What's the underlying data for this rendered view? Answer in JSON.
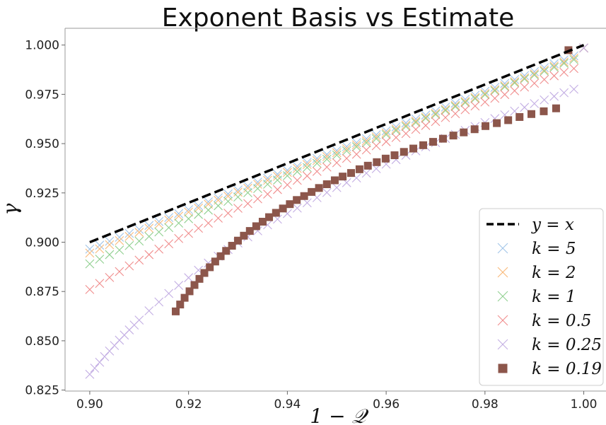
{
  "chart_data": {
    "type": "scatter",
    "title": "Exponent Basis vs Estimate",
    "xlabel": "1 − 𝒬",
    "ylabel": "γ",
    "xlim": [
      0.895,
      1.0045
    ],
    "ylim": [
      0.8245,
      1.0085
    ],
    "x_ticks": [
      0.9,
      0.92,
      0.94,
      0.96,
      0.98,
      1.0
    ],
    "x_tick_labels": [
      "0.90",
      "0.92",
      "0.94",
      "0.96",
      "0.98",
      "1.00"
    ],
    "y_ticks": [
      0.825,
      0.85,
      0.875,
      0.9,
      0.925,
      0.95,
      0.975,
      1.0
    ],
    "y_tick_labels": [
      "0.825",
      "0.850",
      "0.875",
      "0.900",
      "0.925",
      "0.950",
      "0.975",
      "1.000"
    ],
    "grid": false,
    "legend_position": "lower-right",
    "series": [
      {
        "name": "y = x",
        "marker": "dashed-line",
        "color": "#000000",
        "x": [
          0.9,
          1.0
        ],
        "y": [
          0.9,
          1.0
        ]
      },
      {
        "name": "k = 5",
        "marker": "x",
        "color": "#a1c4e8",
        "x": [
          0.9,
          0.902,
          0.904,
          0.906,
          0.908,
          0.91,
          0.912,
          0.914,
          0.916,
          0.918,
          0.92,
          0.922,
          0.924,
          0.926,
          0.928,
          0.93,
          0.932,
          0.934,
          0.936,
          0.938,
          0.94,
          0.942,
          0.944,
          0.946,
          0.948,
          0.95,
          0.952,
          0.954,
          0.956,
          0.958,
          0.96,
          0.962,
          0.964,
          0.966,
          0.968,
          0.97,
          0.972,
          0.974,
          0.976,
          0.978,
          0.98,
          0.982,
          0.984,
          0.986,
          0.988,
          0.99,
          0.992,
          0.994,
          0.996,
          0.998,
          1.0
        ],
        "y": [
          0.8965,
          0.8985,
          0.9005,
          0.9025,
          0.9045,
          0.9065,
          0.9085,
          0.9105,
          0.9125,
          0.9145,
          0.9165,
          0.9185,
          0.9205,
          0.9225,
          0.9245,
          0.9265,
          0.9285,
          0.9305,
          0.9325,
          0.9345,
          0.9365,
          0.9385,
          0.9405,
          0.9425,
          0.9445,
          0.9465,
          0.9485,
          0.9505,
          0.9525,
          0.9545,
          0.9565,
          0.9585,
          0.9605,
          0.9625,
          0.9645,
          0.9665,
          0.9685,
          0.9705,
          0.9725,
          0.9745,
          0.9765,
          0.9785,
          0.9805,
          0.9825,
          0.9845,
          0.9865,
          0.9885,
          0.9905,
          0.9925,
          0.9945,
          0.9985
        ]
      },
      {
        "name": "k = 2",
        "marker": "x",
        "color": "#f9b97a",
        "x": [
          0.9,
          0.902,
          0.904,
          0.906,
          0.908,
          0.91,
          0.912,
          0.914,
          0.916,
          0.918,
          0.92,
          0.922,
          0.924,
          0.926,
          0.928,
          0.93,
          0.932,
          0.934,
          0.936,
          0.938,
          0.94,
          0.942,
          0.944,
          0.946,
          0.948,
          0.95,
          0.952,
          0.954,
          0.956,
          0.958,
          0.96,
          0.962,
          0.964,
          0.966,
          0.968,
          0.97,
          0.972,
          0.974,
          0.976,
          0.978,
          0.98,
          0.982,
          0.984,
          0.986,
          0.988,
          0.99,
          0.992,
          0.994,
          0.996,
          0.998,
          1.0
        ],
        "y": [
          0.8945,
          0.8966,
          0.8987,
          0.9008,
          0.9029,
          0.905,
          0.9071,
          0.9091,
          0.9112,
          0.9132,
          0.9153,
          0.9173,
          0.9193,
          0.9213,
          0.9233,
          0.9254,
          0.9274,
          0.9294,
          0.9314,
          0.9334,
          0.9354,
          0.9374,
          0.9394,
          0.9414,
          0.9434,
          0.9454,
          0.9474,
          0.9494,
          0.9514,
          0.9534,
          0.9554,
          0.9574,
          0.9594,
          0.9614,
          0.9634,
          0.9654,
          0.9674,
          0.9694,
          0.9714,
          0.9734,
          0.9754,
          0.9774,
          0.9794,
          0.9814,
          0.9834,
          0.9854,
          0.9874,
          0.9894,
          0.9914,
          0.9934,
          0.9985
        ]
      },
      {
        "name": "k = 1",
        "marker": "x",
        "color": "#8fcf8f",
        "x": [
          0.9,
          0.902,
          0.904,
          0.906,
          0.908,
          0.91,
          0.912,
          0.914,
          0.916,
          0.918,
          0.92,
          0.922,
          0.924,
          0.926,
          0.928,
          0.93,
          0.932,
          0.934,
          0.936,
          0.938,
          0.94,
          0.942,
          0.944,
          0.946,
          0.948,
          0.95,
          0.952,
          0.954,
          0.956,
          0.958,
          0.96,
          0.962,
          0.964,
          0.966,
          0.968,
          0.97,
          0.972,
          0.974,
          0.976,
          0.978,
          0.98,
          0.982,
          0.984,
          0.986,
          0.988,
          0.99,
          0.992,
          0.994,
          0.996,
          0.998,
          1.0
        ],
        "y": [
          0.889,
          0.8914,
          0.8937,
          0.896,
          0.8983,
          0.9006,
          0.9029,
          0.9052,
          0.9074,
          0.9097,
          0.9119,
          0.9141,
          0.9163,
          0.9185,
          0.9207,
          0.9229,
          0.9251,
          0.9272,
          0.9294,
          0.9315,
          0.9337,
          0.9358,
          0.9379,
          0.94,
          0.9421,
          0.9442,
          0.9463,
          0.9484,
          0.9504,
          0.9525,
          0.9546,
          0.9566,
          0.9587,
          0.9607,
          0.9628,
          0.9648,
          0.9668,
          0.9688,
          0.9708,
          0.9728,
          0.9748,
          0.9768,
          0.9788,
          0.9808,
          0.9828,
          0.9848,
          0.9867,
          0.9887,
          0.9907,
          0.9926,
          0.9985
        ]
      },
      {
        "name": "k = 0.5",
        "marker": "x",
        "color": "#f08c8c",
        "x": [
          0.9,
          0.902,
          0.904,
          0.906,
          0.908,
          0.91,
          0.912,
          0.914,
          0.916,
          0.918,
          0.92,
          0.922,
          0.924,
          0.926,
          0.928,
          0.93,
          0.932,
          0.934,
          0.936,
          0.938,
          0.94,
          0.942,
          0.944,
          0.946,
          0.948,
          0.95,
          0.952,
          0.954,
          0.956,
          0.958,
          0.96,
          0.962,
          0.964,
          0.966,
          0.968,
          0.97,
          0.972,
          0.974,
          0.976,
          0.978,
          0.98,
          0.982,
          0.984,
          0.986,
          0.988,
          0.99,
          0.992,
          0.994,
          0.996,
          0.998,
          1.0
        ],
        "y": [
          0.876,
          0.8791,
          0.8821,
          0.8851,
          0.888,
          0.8909,
          0.8937,
          0.8965,
          0.8992,
          0.9019,
          0.9045,
          0.9071,
          0.9097,
          0.9122,
          0.9147,
          0.9172,
          0.9196,
          0.922,
          0.9244,
          0.9267,
          0.9291,
          0.9314,
          0.9336,
          0.9359,
          0.9381,
          0.9403,
          0.9425,
          0.9446,
          0.9468,
          0.9489,
          0.951,
          0.9531,
          0.9551,
          0.9572,
          0.9592,
          0.9612,
          0.9632,
          0.9652,
          0.9672,
          0.9691,
          0.9711,
          0.973,
          0.9749,
          0.9768,
          0.9787,
          0.9806,
          0.9825,
          0.9844,
          0.9862,
          0.9881,
          0.9985
        ]
      },
      {
        "name": "k = 0.25",
        "marker": "x",
        "color": "#c3aee3",
        "x": [
          0.9,
          0.901,
          0.902,
          0.903,
          0.904,
          0.905,
          0.906,
          0.907,
          0.908,
          0.909,
          0.91,
          0.912,
          0.914,
          0.916,
          0.918,
          0.92,
          0.922,
          0.924,
          0.926,
          0.928,
          0.93,
          0.932,
          0.934,
          0.936,
          0.938,
          0.94,
          0.942,
          0.944,
          0.946,
          0.948,
          0.95,
          0.952,
          0.954,
          0.956,
          0.958,
          0.96,
          0.962,
          0.964,
          0.966,
          0.968,
          0.97,
          0.972,
          0.974,
          0.976,
          0.978,
          0.98,
          0.982,
          0.984,
          0.986,
          0.988,
          0.99,
          0.992,
          0.994,
          0.996,
          0.998,
          1.0
        ],
        "y": [
          0.833,
          0.8361,
          0.8391,
          0.842,
          0.8448,
          0.8476,
          0.8503,
          0.8529,
          0.8555,
          0.858,
          0.8605,
          0.8652,
          0.8697,
          0.874,
          0.8781,
          0.882,
          0.8858,
          0.8894,
          0.8929,
          0.8963,
          0.8996,
          0.9027,
          0.9058,
          0.9088,
          0.9117,
          0.9145,
          0.9173,
          0.92,
          0.9226,
          0.9252,
          0.9277,
          0.9302,
          0.9326,
          0.935,
          0.9373,
          0.9396,
          0.9419,
          0.9441,
          0.9463,
          0.9484,
          0.9505,
          0.9526,
          0.9547,
          0.9567,
          0.9587,
          0.9607,
          0.9627,
          0.9646,
          0.9665,
          0.9684,
          0.9703,
          0.9722,
          0.974,
          0.9758,
          0.9776,
          0.9985
        ]
      },
      {
        "name": "k = 0.19",
        "marker": "square",
        "color": "#8c564b",
        "x": [
          0.9174,
          0.9183,
          0.9192,
          0.9202,
          0.9212,
          0.9222,
          0.9232,
          0.9243,
          0.9254,
          0.9265,
          0.9276,
          0.9288,
          0.93,
          0.9312,
          0.9324,
          0.9337,
          0.935,
          0.9363,
          0.9377,
          0.9391,
          0.9405,
          0.9419,
          0.9434,
          0.9449,
          0.9464,
          0.948,
          0.9496,
          0.9512,
          0.9529,
          0.9546,
          0.9563,
          0.9581,
          0.9599,
          0.9617,
          0.9636,
          0.9655,
          0.9675,
          0.9695,
          0.9715,
          0.9736,
          0.9757,
          0.9779,
          0.9801,
          0.9824,
          0.9847,
          0.987,
          0.9894,
          0.9919,
          0.9944,
          0.9969
        ],
        "y": [
          0.8649,
          0.8684,
          0.8718,
          0.8751,
          0.8783,
          0.8814,
          0.8844,
          0.8873,
          0.8902,
          0.8929,
          0.8956,
          0.8982,
          0.9008,
          0.9033,
          0.9057,
          0.9081,
          0.9104,
          0.9127,
          0.9149,
          0.9171,
          0.9193,
          0.9214,
          0.9234,
          0.9255,
          0.9275,
          0.9294,
          0.9314,
          0.9333,
          0.9351,
          0.937,
          0.9388,
          0.9406,
          0.9424,
          0.9441,
          0.9458,
          0.9475,
          0.9492,
          0.9509,
          0.9525,
          0.9541,
          0.9557,
          0.9573,
          0.9589,
          0.9604,
          0.9619,
          0.9635,
          0.965,
          0.9664,
          0.9679,
          0.9974
        ]
      }
    ]
  }
}
